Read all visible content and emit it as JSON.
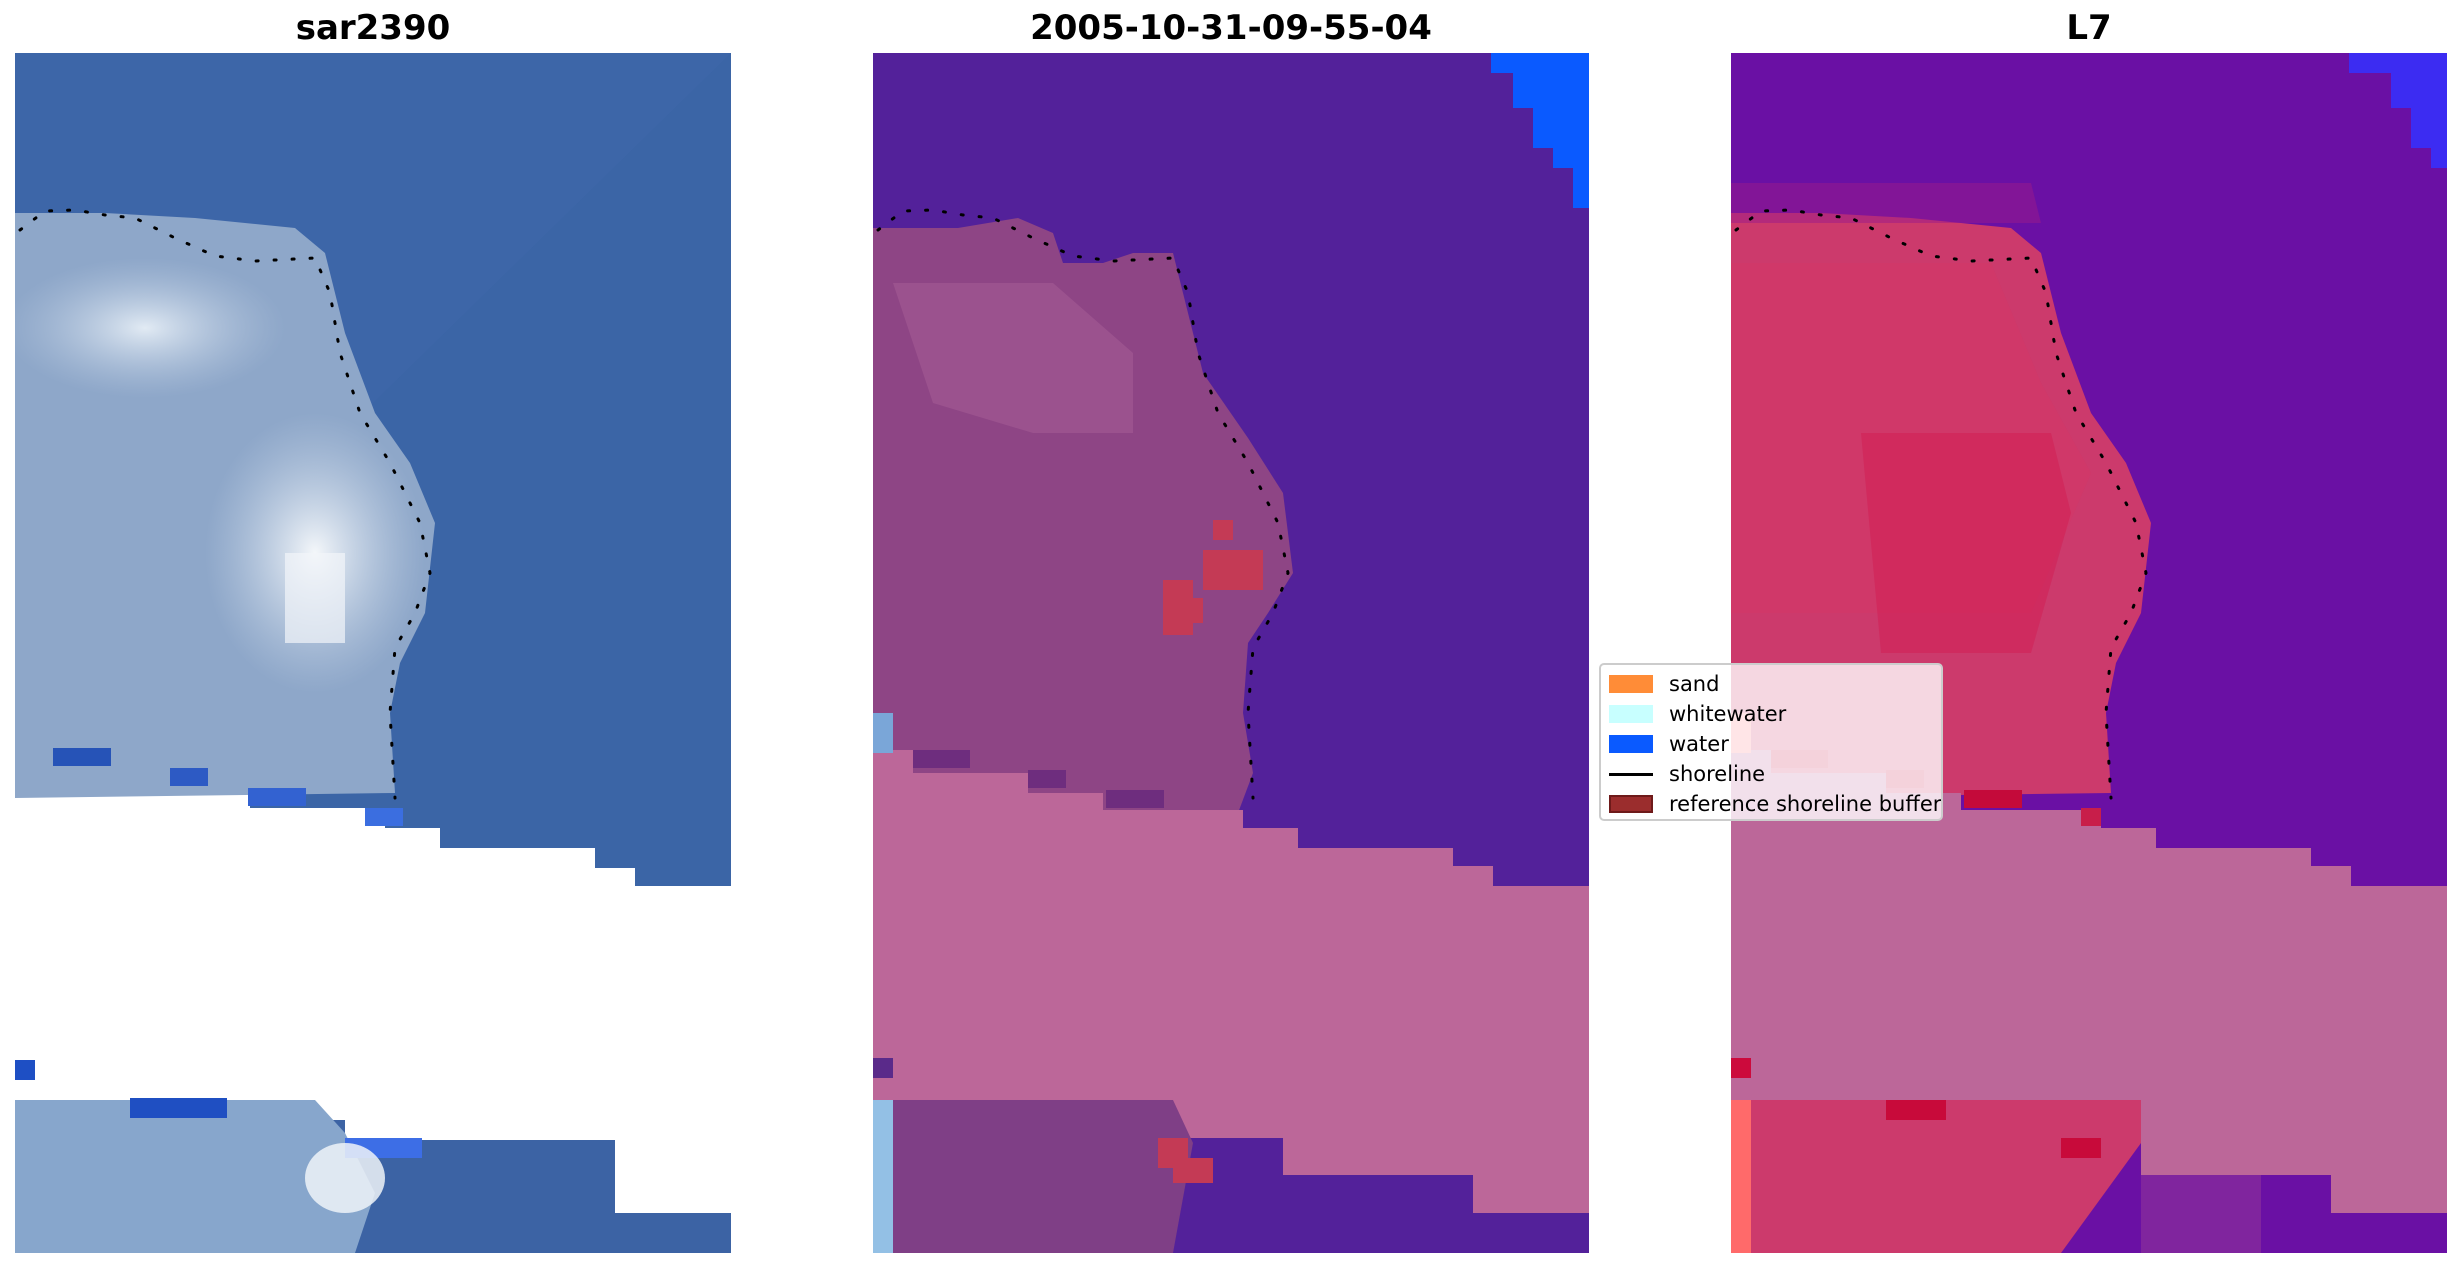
{
  "panels": [
    {
      "title": "sar2390"
    },
    {
      "title": "2005-10-31-09-55-04"
    },
    {
      "title": "L7"
    }
  ],
  "legend": {
    "entries": [
      {
        "label": "sand",
        "color": "#ff8c37"
      },
      {
        "label": "whitewater",
        "color": "#c8ffff"
      },
      {
        "label": "water",
        "color": "#0a5aff"
      },
      {
        "label": "shoreline",
        "color": "#000000"
      },
      {
        "label": "reference shoreline buffer",
        "color": "#9b2d2d"
      }
    ]
  },
  "colors": {
    "rgb_water": "#3a64a6",
    "rgb_land": "#8fa9cc",
    "class_water": "#53219a",
    "class_land": "#8e4585",
    "class_buffer": "#bc6799",
    "mndwi_water": "#6a10a4",
    "mndwi_land": "#cc3a6c"
  }
}
